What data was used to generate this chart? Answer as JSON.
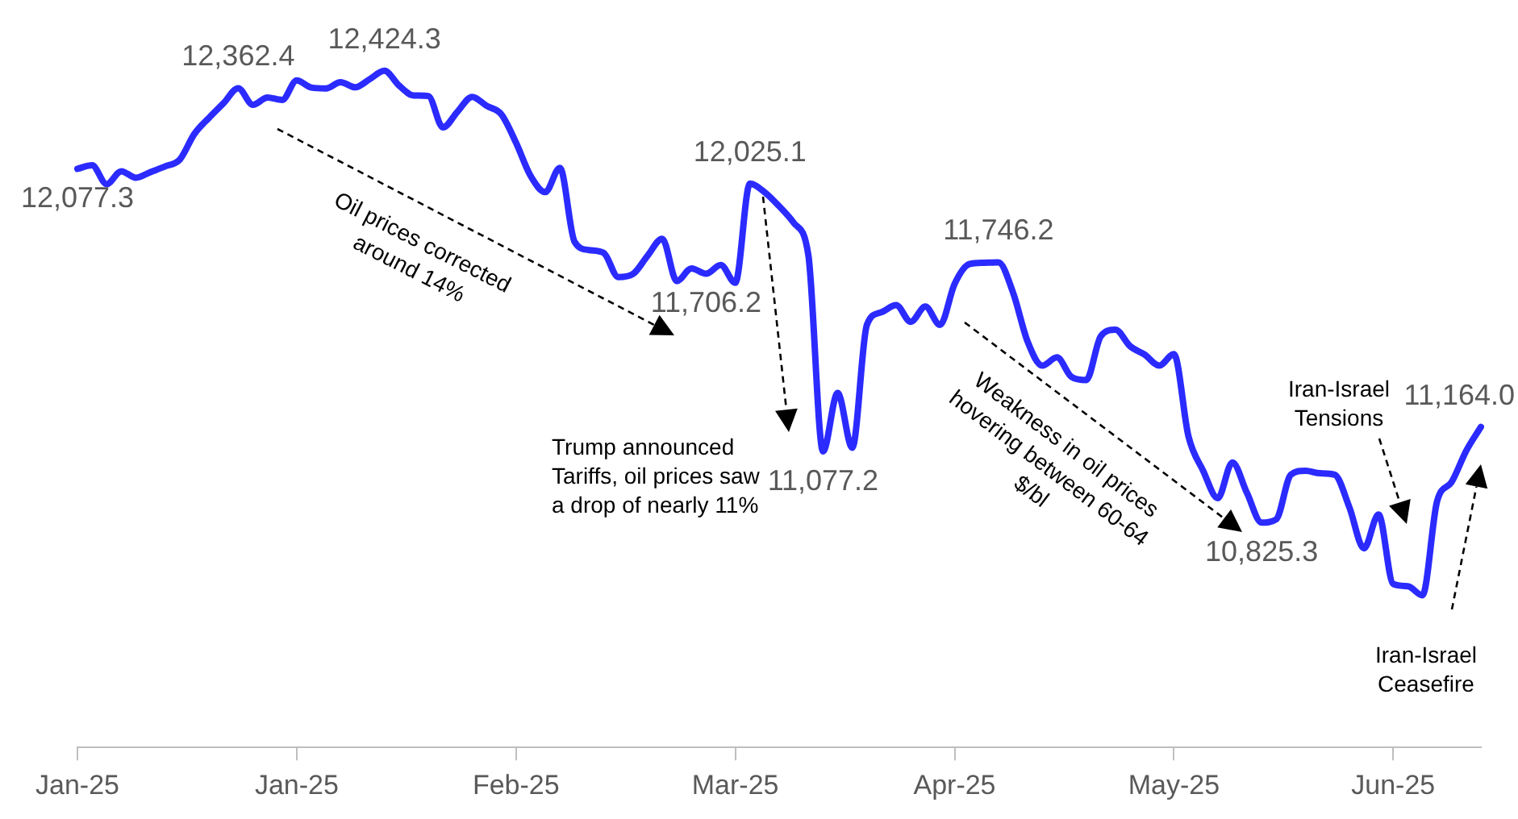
{
  "chart_data": {
    "type": "line",
    "categories": [
      "Jan-25",
      null,
      null,
      null,
      null,
      null,
      null,
      null,
      null,
      null,
      null,
      null,
      null,
      null,
      null,
      "Jan-25",
      null,
      null,
      null,
      null,
      null,
      null,
      null,
      null,
      null,
      null,
      null,
      null,
      null,
      null,
      "Feb-25",
      null,
      null,
      null,
      null,
      null,
      null,
      null,
      null,
      null,
      null,
      null,
      null,
      null,
      null,
      "Mar-25",
      null,
      null,
      null,
      null,
      null,
      null,
      null,
      null,
      null,
      null,
      null,
      null,
      null,
      null,
      "Apr-25",
      null,
      null,
      null,
      null,
      null,
      null,
      null,
      null,
      null,
      null,
      null,
      null,
      null,
      null,
      "May-25",
      null,
      null,
      null,
      null,
      null,
      null,
      null,
      null,
      null,
      null,
      null,
      null,
      null,
      null,
      "Jun-25",
      null,
      null,
      null,
      null,
      null,
      null
    ],
    "series": [
      {
        "color": "#2b2bff",
        "values": [
          12077.3,
          12090,
          12023,
          12069,
          12046,
          12066,
          12086,
          12110,
          12201,
          12258,
          12310,
          12362.4,
          12304,
          12330,
          12321,
          12390,
          12365,
          12362,
          12384,
          12366,
          12395,
          12424.3,
          12372,
          12337,
          12335,
          12224,
          12280,
          12332,
          12300,
          12270,
          12170,
          12052,
          11995,
          12081,
          11820,
          11790,
          11780,
          11694,
          11705,
          11770,
          11830,
          11680,
          11725,
          11706.2,
          11737,
          11674,
          12025.1,
          11995,
          11945,
          11886,
          11771,
          11077.2,
          11284,
          11090,
          11525,
          11570,
          11595,
          11536,
          11590,
          11525,
          11670,
          11740,
          11745,
          11746.2,
          11639,
          11465,
          11381,
          11410,
          11341,
          11330,
          11485,
          11508,
          11450,
          11420,
          11381,
          11422,
          11130,
          11009,
          10912,
          11038,
          10930,
          10825.3,
          10837,
          10995,
          11009,
          11000,
          10995,
          10880,
          10734,
          10854,
          10608,
          10600,
          10568,
          10900,
          10969,
          11080,
          11164.0
        ],
        "value_labels": [
          "12,077.3",
          null,
          null,
          null,
          null,
          null,
          null,
          null,
          null,
          null,
          null,
          "12,362.4",
          null,
          null,
          null,
          null,
          null,
          null,
          null,
          null,
          null,
          "12,424.3",
          null,
          null,
          null,
          null,
          null,
          null,
          null,
          null,
          null,
          null,
          null,
          null,
          null,
          null,
          null,
          null,
          null,
          null,
          null,
          null,
          null,
          "11,706.2",
          null,
          null,
          "12,025.1",
          null,
          null,
          null,
          null,
          "11,077.2",
          null,
          null,
          null,
          null,
          null,
          null,
          null,
          null,
          null,
          null,
          null,
          "11,746.2",
          null,
          null,
          null,
          null,
          null,
          null,
          null,
          null,
          null,
          null,
          null,
          null,
          null,
          null,
          null,
          null,
          null,
          "10,825.3",
          null,
          null,
          null,
          null,
          null,
          null,
          null,
          null,
          null,
          null,
          null,
          null,
          null,
          null,
          "11,164.0"
        ]
      }
    ],
    "tick_labels": "x",
    "grid": false,
    "legend": false,
    "marker": "none",
    "line_style": "solid",
    "annotations": [
      "Oil prices corrected around 14%",
      "Trump announced Tariffs, oil prices saw a drop of nearly 11%",
      "Weakness in oil prices hovering between 60-64 $/bl",
      "Iran-Israel Tensions",
      "Iran-Israel Ceasefire"
    ]
  }
}
